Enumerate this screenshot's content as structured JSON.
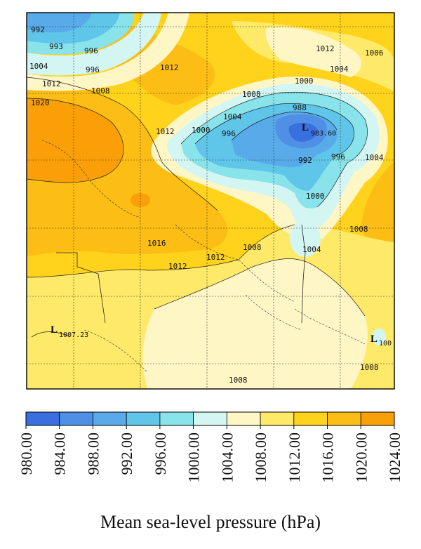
{
  "contour_labels": [
    {
      "id": "c1",
      "text": "992"
    },
    {
      "id": "c2",
      "text": "993"
    },
    {
      "id": "c3",
      "text": "996"
    },
    {
      "id": "c4",
      "text": "1004"
    },
    {
      "id": "c5",
      "text": "996"
    },
    {
      "id": "c6",
      "text": "1012"
    },
    {
      "id": "c7",
      "text": "1012"
    },
    {
      "id": "c8",
      "text": "1012"
    },
    {
      "id": "c9",
      "text": "1006"
    },
    {
      "id": "c10",
      "text": "1004"
    },
    {
      "id": "c11",
      "text": "1000"
    },
    {
      "id": "c12",
      "text": "1008"
    },
    {
      "id": "c13",
      "text": "1020"
    },
    {
      "id": "c14",
      "text": "1004"
    },
    {
      "id": "c15",
      "text": "1012"
    },
    {
      "id": "c16",
      "text": "988"
    },
    {
      "id": "c17",
      "text": "1000"
    },
    {
      "id": "c18",
      "text": "996"
    },
    {
      "id": "c19",
      "text": "992"
    },
    {
      "id": "c20",
      "text": "996"
    },
    {
      "id": "c21",
      "text": "1004"
    },
    {
      "id": "c22",
      "text": "1000"
    },
    {
      "id": "c23",
      "text": "1008"
    },
    {
      "id": "c24",
      "text": "1016"
    },
    {
      "id": "c25",
      "text": "1008"
    },
    {
      "id": "c26",
      "text": "1012"
    },
    {
      "id": "c27",
      "text": "1004"
    },
    {
      "id": "c28",
      "text": "1012"
    },
    {
      "id": "c29",
      "text": "1008"
    },
    {
      "id": "c30",
      "text": "1008"
    },
    {
      "id": "c31",
      "text": "1008"
    }
  ],
  "low_centers": [
    {
      "id": "l1",
      "symbol": "L",
      "value": "983.60"
    },
    {
      "id": "l2",
      "symbol": "L",
      "value": "1007.23"
    },
    {
      "id": "l3",
      "symbol": "L",
      "value": "100"
    }
  ],
  "colorbar": {
    "title": "Mean sea-level pressure (hPa)",
    "bins": [
      {
        "color": "#3a6fe0"
      },
      {
        "color": "#4f8fe6"
      },
      {
        "color": "#58abe8"
      },
      {
        "color": "#5fc6ea"
      },
      {
        "color": "#88e3ea"
      },
      {
        "color": "#d4f6f2"
      },
      {
        "color": "#fff6c6"
      },
      {
        "color": "#ffe968"
      },
      {
        "color": "#ffd21c"
      },
      {
        "color": "#fcbd14"
      },
      {
        "color": "#fa9f08"
      }
    ],
    "ticks": [
      "980.00",
      "984.00",
      "988.00",
      "992.00",
      "996.00",
      "1000.00",
      "1004.00",
      "1008.00",
      "1012.00",
      "1016.00",
      "1020.00",
      "1024.00"
    ]
  }
}
